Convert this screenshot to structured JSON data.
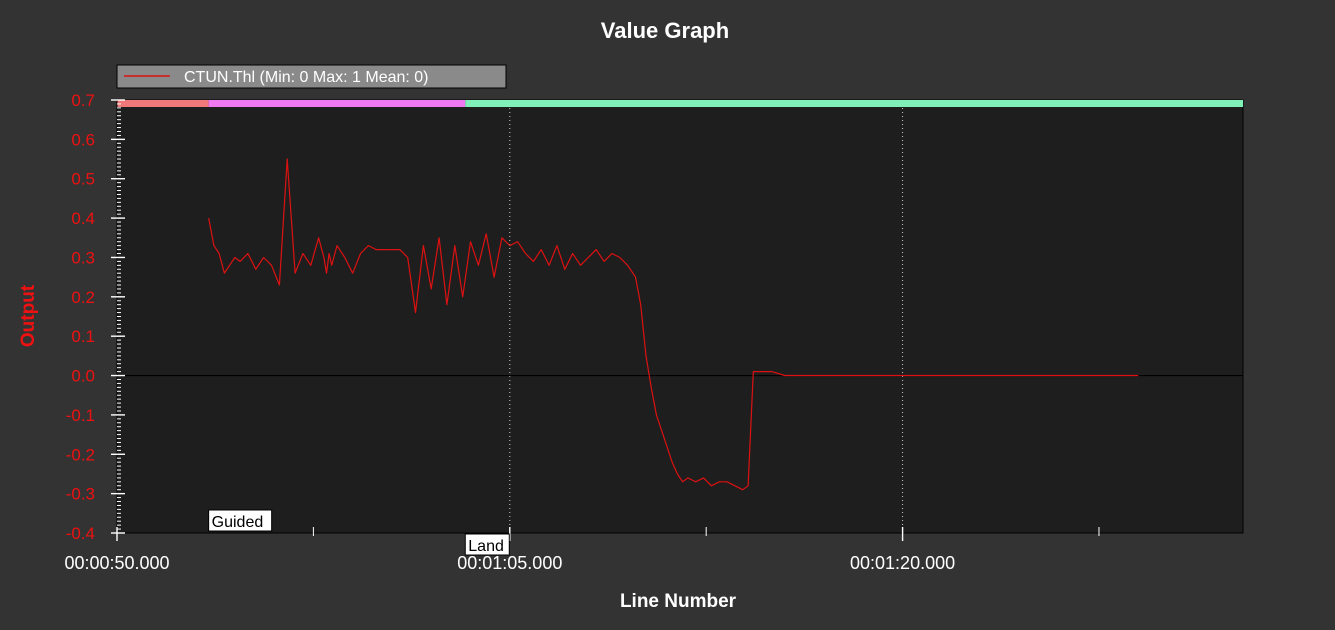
{
  "chart_data": {
    "type": "line",
    "title": "Value Graph",
    "xlabel": "Line Number",
    "ylabel": "Output",
    "xlim": [
      "00:00:50.000",
      "00:01:33.000"
    ],
    "ylim": [
      -0.4,
      0.7
    ],
    "y_ticks": [
      0.7,
      0.6,
      0.5,
      0.4,
      0.3,
      0.2,
      0.1,
      0.0,
      -0.1,
      -0.2,
      -0.3,
      -0.4
    ],
    "y_tick_labels": [
      "0.7",
      "0.6",
      "0.5",
      "0.4",
      "0.3",
      "0.2",
      "0.1",
      "0.0",
      "-0.1",
      "-0.2",
      "-0.3",
      "-0.4"
    ],
    "x_ticks": [
      "00:00:50.000",
      "00:01:05.000",
      "00:01:20.000"
    ],
    "grid": "dotted vertical at labeled x ticks",
    "legend": {
      "placement": "top-left",
      "entries": [
        "CTUN.Thl (Min: 0 Max: 1 Mean: 0)"
      ]
    },
    "mode_bar": [
      {
        "start": "00:00:50.000",
        "end": "00:00:53.500",
        "color": "#f07878"
      },
      {
        "start": "00:00:53.500",
        "end": "00:01:03.300",
        "color": "#f078f0"
      },
      {
        "start": "00:01:03.300",
        "end": "00:01:33.000",
        "color": "#80f0b8"
      }
    ],
    "annotations": [
      {
        "text": "Guided",
        "x": "00:00:53.500",
        "y": -0.4
      },
      {
        "text": "Land",
        "x": "00:01:03.300",
        "y": -0.4
      }
    ],
    "series": [
      {
        "name": "CTUN.Thl (Min: 0 Max: 1 Mean: 0)",
        "color": "#dd1111",
        "x": [
          "00:00:53.500",
          "00:00:53.700",
          "00:00:53.900",
          "00:00:54.100",
          "00:00:54.300",
          "00:00:54.500",
          "00:00:54.700",
          "00:00:55.000",
          "00:00:55.300",
          "00:00:55.600",
          "00:00:55.900",
          "00:00:56.200",
          "00:00:56.500",
          "00:00:56.800",
          "00:00:57.100",
          "00:00:57.400",
          "00:00:57.700",
          "00:00:57.900",
          "00:00:58.000",
          "00:00:58.100",
          "00:00:58.200",
          "00:00:58.400",
          "00:00:58.700",
          "00:00:59.000",
          "00:00:59.300",
          "00:00:59.600",
          "00:00:59.900",
          "00:01:00.200",
          "00:01:00.500",
          "00:01:00.800",
          "00:01:01.100",
          "00:01:01.400",
          "00:01:01.700",
          "00:01:02.000",
          "00:01:02.300",
          "00:01:02.600",
          "00:01:02.900",
          "00:01:03.200",
          "00:01:03.500",
          "00:01:03.800",
          "00:01:04.100",
          "00:01:04.400",
          "00:01:04.700",
          "00:01:05.000",
          "00:01:05.300",
          "00:01:05.600",
          "00:01:05.900",
          "00:01:06.200",
          "00:01:06.500",
          "00:01:06.800",
          "00:01:07.100",
          "00:01:07.400",
          "00:01:07.700",
          "00:01:08.000",
          "00:01:08.300",
          "00:01:08.600",
          "00:01:08.900",
          "00:01:09.200",
          "00:01:09.500",
          "00:01:09.800",
          "00:01:10.000",
          "00:01:10.200",
          "00:01:10.400",
          "00:01:10.600",
          "00:01:10.800",
          "00:01:11.000",
          "00:01:11.200",
          "00:01:11.400",
          "00:01:11.600",
          "00:01:11.800",
          "00:01:12.100",
          "00:01:12.400",
          "00:01:12.700",
          "00:01:13.000",
          "00:01:13.300",
          "00:01:13.600",
          "00:01:13.900",
          "00:01:14.100",
          "00:01:14.300",
          "00:01:14.500",
          "00:01:14.700",
          "00:01:15.000",
          "00:01:15.500",
          "00:01:16.000",
          "00:01:16.500",
          "00:01:17.000",
          "00:01:17.500",
          "00:01:18.000",
          "00:01:18.500",
          "00:01:19.000",
          "00:01:20.000",
          "00:01:21.000",
          "00:01:22.000",
          "00:01:23.000",
          "00:01:24.000",
          "00:01:25.000",
          "00:01:26.000",
          "00:01:27.000",
          "00:01:28.000",
          "00:01:29.000"
        ],
        "y": [
          0.4,
          0.33,
          0.31,
          0.26,
          0.28,
          0.3,
          0.29,
          0.31,
          0.27,
          0.3,
          0.28,
          0.23,
          0.55,
          0.26,
          0.31,
          0.28,
          0.35,
          0.3,
          0.26,
          0.31,
          0.28,
          0.33,
          0.3,
          0.26,
          0.31,
          0.33,
          0.32,
          0.32,
          0.32,
          0.32,
          0.3,
          0.16,
          0.33,
          0.22,
          0.35,
          0.18,
          0.33,
          0.2,
          0.34,
          0.28,
          0.36,
          0.25,
          0.35,
          0.33,
          0.34,
          0.31,
          0.29,
          0.32,
          0.28,
          0.33,
          0.27,
          0.31,
          0.28,
          0.3,
          0.32,
          0.29,
          0.31,
          0.3,
          0.28,
          0.25,
          0.18,
          0.05,
          -0.03,
          -0.1,
          -0.14,
          -0.18,
          -0.22,
          -0.25,
          -0.27,
          -0.26,
          -0.27,
          -0.26,
          -0.28,
          -0.27,
          -0.27,
          -0.28,
          -0.29,
          -0.28,
          0.01,
          0.01,
          0.01,
          0.01,
          0.0,
          0.0,
          0.0,
          0.0,
          0.0,
          0.0,
          0.0,
          0.0,
          0.0,
          0.0,
          0.0,
          0.0,
          0.0,
          0.0,
          0.0,
          0.0,
          0.0,
          0.0
        ]
      }
    ]
  }
}
